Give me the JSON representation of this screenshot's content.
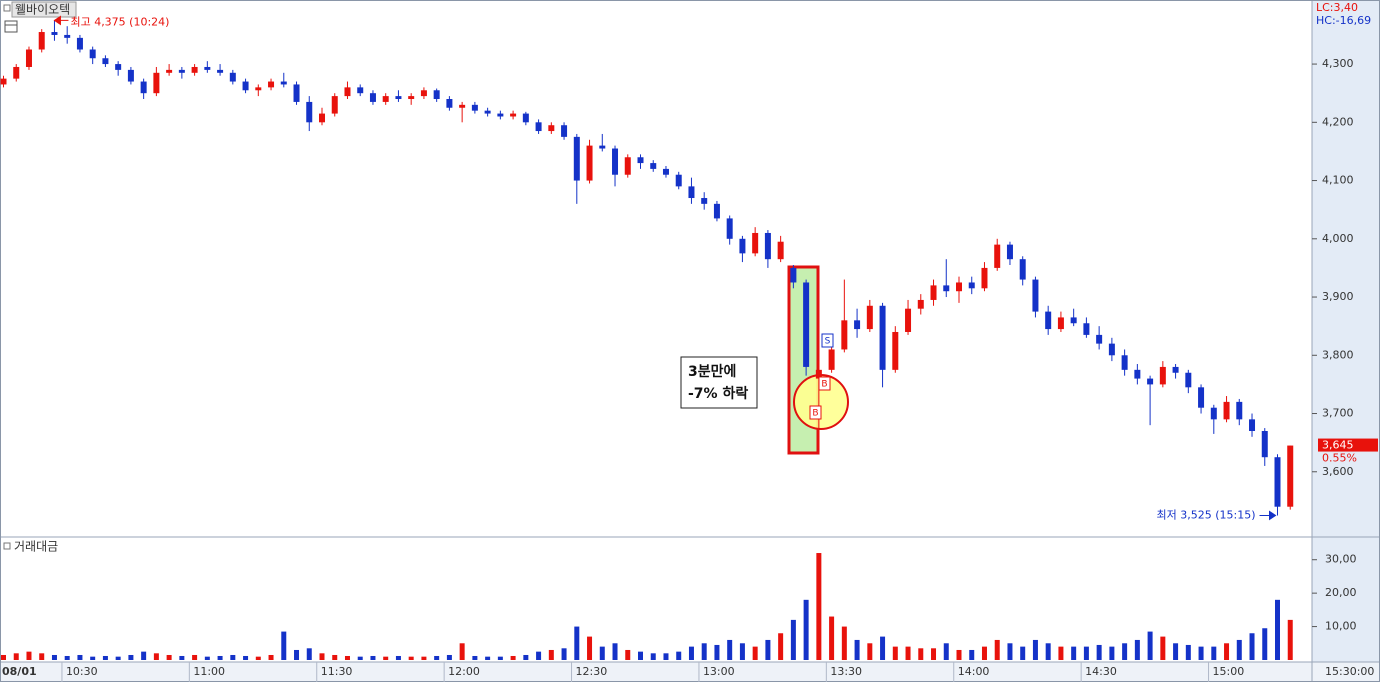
{
  "chart_data": [
    {
      "type": "candlestick",
      "title": "웰바이오텍",
      "open": [
        4265,
        4275,
        4295,
        4325,
        4355,
        4350,
        4345,
        4325,
        4310,
        4300,
        4290,
        4270,
        4250,
        4285,
        4290,
        4285,
        4295,
        4290,
        4285,
        4270,
        4255,
        4260,
        4270,
        4265,
        4235,
        4200,
        4215,
        4245,
        4260,
        4250,
        4235,
        4245,
        4240,
        4245,
        4255,
        4240,
        4225,
        4230,
        4220,
        4215,
        4210,
        4215,
        4200,
        4185,
        4195,
        4175,
        4100,
        4160,
        4155,
        4110,
        4140,
        4130,
        4120,
        4110,
        4090,
        4070,
        4060,
        4035,
        4000,
        3975,
        4010,
        3965,
        3950,
        3925,
        3760,
        3775,
        3810,
        3860,
        3845,
        3885,
        3775,
        3840,
        3880,
        3895,
        3920,
        3910,
        3925,
        3915,
        3950,
        3990,
        3965,
        3930,
        3875,
        3845,
        3865,
        3855,
        3835,
        3820,
        3800,
        3775,
        3760,
        3750,
        3780,
        3770,
        3745,
        3710,
        3690,
        3720,
        3690,
        3670,
        3625,
        3540
      ],
      "high": [
        4280,
        4300,
        4330,
        4360,
        4375,
        4365,
        4350,
        4330,
        4315,
        4305,
        4295,
        4275,
        4295,
        4300,
        4295,
        4300,
        4305,
        4300,
        4290,
        4275,
        4265,
        4275,
        4285,
        4270,
        4245,
        4225,
        4250,
        4270,
        4265,
        4255,
        4250,
        4255,
        4250,
        4260,
        4258,
        4245,
        4235,
        4235,
        4225,
        4220,
        4220,
        4218,
        4205,
        4200,
        4200,
        4180,
        4170,
        4180,
        4160,
        4145,
        4145,
        4135,
        4125,
        4115,
        4105,
        4080,
        4065,
        4040,
        4005,
        4020,
        4015,
        4005,
        3955,
        3930,
        3790,
        3820,
        3930,
        3880,
        3895,
        3890,
        3850,
        3895,
        3905,
        3930,
        3965,
        3935,
        3935,
        3960,
        4000,
        3995,
        3970,
        3935,
        3885,
        3875,
        3880,
        3865,
        3850,
        3830,
        3810,
        3785,
        3765,
        3790,
        3785,
        3775,
        3750,
        3715,
        3730,
        3725,
        3700,
        3675,
        3630,
        3645
      ],
      "low": [
        4260,
        4270,
        4290,
        4320,
        4340,
        4335,
        4320,
        4300,
        4295,
        4280,
        4265,
        4240,
        4245,
        4280,
        4275,
        4280,
        4285,
        4280,
        4265,
        4250,
        4245,
        4255,
        4260,
        4230,
        4185,
        4195,
        4210,
        4240,
        4245,
        4230,
        4230,
        4235,
        4230,
        4240,
        4235,
        4220,
        4200,
        4215,
        4210,
        4205,
        4205,
        4195,
        4180,
        4180,
        4170,
        4060,
        4095,
        4150,
        4090,
        4105,
        4120,
        4115,
        4105,
        4085,
        4060,
        4050,
        4030,
        3990,
        3960,
        3970,
        3950,
        3960,
        3915,
        3765,
        3640,
        3770,
        3805,
        3830,
        3840,
        3745,
        3770,
        3835,
        3870,
        3885,
        3900,
        3890,
        3905,
        3910,
        3945,
        3955,
        3920,
        3865,
        3835,
        3840,
        3850,
        3830,
        3810,
        3790,
        3765,
        3750,
        3680,
        3745,
        3760,
        3735,
        3700,
        3665,
        3685,
        3680,
        3660,
        3610,
        3525,
        3535
      ],
      "close": [
        4275,
        4295,
        4325,
        4355,
        4350,
        4345,
        4325,
        4310,
        4300,
        4290,
        4270,
        4250,
        4285,
        4290,
        4285,
        4295,
        4290,
        4285,
        4270,
        4255,
        4260,
        4270,
        4265,
        4235,
        4200,
        4215,
        4245,
        4260,
        4250,
        4235,
        4245,
        4240,
        4245,
        4255,
        4240,
        4225,
        4230,
        4220,
        4215,
        4210,
        4215,
        4200,
        4185,
        4195,
        4175,
        4100,
        4160,
        4155,
        4110,
        4140,
        4130,
        4120,
        4110,
        4090,
        4070,
        4060,
        4035,
        4000,
        3975,
        4010,
        3965,
        3995,
        3925,
        3780,
        3775,
        3810,
        3860,
        3845,
        3885,
        3775,
        3840,
        3880,
        3895,
        3920,
        3910,
        3925,
        3915,
        3950,
        3990,
        3965,
        3930,
        3875,
        3845,
        3865,
        3855,
        3835,
        3820,
        3800,
        3775,
        3760,
        3750,
        3780,
        3770,
        3745,
        3710,
        3690,
        3720,
        3690,
        3670,
        3625,
        3540,
        3645
      ],
      "up_color": "#e8120c",
      "down_color": "#1432c8",
      "ylim": [
        3488,
        4410
      ],
      "yticks": [
        {
          "value": 3600,
          "label": "3,600"
        },
        {
          "value": 3700,
          "label": "3,700"
        },
        {
          "value": 3800,
          "label": "3,800"
        },
        {
          "value": 3900,
          "label": "3,900"
        },
        {
          "value": 4000,
          "label": "4,000"
        },
        {
          "value": 4100,
          "label": "4,100"
        },
        {
          "value": 4200,
          "label": "4,200"
        },
        {
          "value": 4300,
          "label": "4,300"
        }
      ],
      "high_note": {
        "value": 4375,
        "label": "최고 4,375 (10:24)"
      },
      "low_note": {
        "value": 3525,
        "label": "최저 3,525 (15:15)"
      },
      "last": {
        "value": 3645,
        "label": "3,645"
      },
      "change": "0.55%",
      "lc": "LC:3,40",
      "hc": "HC:-16,69",
      "callout": [
        "3분만에",
        "-7% 하락"
      ],
      "markers": [
        "S",
        "B",
        "B"
      ]
    },
    {
      "type": "bar",
      "title": "거래대금",
      "values": [
        1.5,
        2,
        2.5,
        2,
        1.5,
        1.2,
        1.5,
        1,
        1.2,
        1,
        1.5,
        2.5,
        2,
        1.5,
        1.2,
        1.5,
        1,
        1.2,
        1.5,
        1.2,
        1,
        1.5,
        8.5,
        3,
        3.5,
        2,
        1.5,
        1.2,
        1,
        1.2,
        1,
        1.2,
        1,
        1,
        1.2,
        1.5,
        5,
        1.2,
        1,
        1,
        1.2,
        1.5,
        2.5,
        3,
        3.5,
        10,
        7,
        4,
        5,
        3,
        2.5,
        2,
        2,
        2.5,
        4,
        5,
        4.5,
        6,
        5,
        4,
        6,
        8,
        12,
        18,
        32,
        13,
        10,
        6,
        5,
        7,
        4,
        4,
        3.5,
        3.5,
        5,
        3,
        3,
        4,
        6,
        5,
        4,
        6,
        5,
        4,
        4,
        4,
        4.5,
        4,
        5,
        6,
        8.5,
        7,
        5,
        4.5,
        4,
        4,
        5,
        6,
        8,
        9.5,
        18,
        12
      ],
      "categories": [
        "08/01",
        null,
        null,
        null,
        null,
        null,
        "10:30",
        null,
        null,
        null,
        null,
        null,
        null,
        null,
        null,
        null,
        "11:00",
        null,
        null,
        null,
        null,
        null,
        null,
        null,
        null,
        null,
        "11:30",
        null,
        null,
        null,
        null,
        null,
        null,
        null,
        null,
        null,
        "12:00",
        null,
        null,
        null,
        null,
        null,
        null,
        null,
        null,
        null,
        "12:30",
        null,
        null,
        null,
        null,
        null,
        null,
        null,
        null,
        null,
        "13:00",
        null,
        null,
        null,
        null,
        null,
        null,
        null,
        null,
        null,
        "13:30",
        null,
        null,
        null,
        null,
        null,
        null,
        null,
        null,
        null,
        "14:00",
        null,
        null,
        null,
        null,
        null,
        null,
        null,
        null,
        null,
        "14:30",
        null,
        null,
        null,
        null,
        null,
        null,
        null,
        null,
        null,
        "15:00",
        null,
        null,
        null,
        null,
        null
      ],
      "end_label": "15:30:00",
      "ylim": [
        0,
        35.3
      ],
      "yticks": [
        {
          "value": 10,
          "label": "10,00"
        },
        {
          "value": 20,
          "label": "20,00"
        },
        {
          "value": 30,
          "label": "30,00"
        }
      ]
    }
  ]
}
